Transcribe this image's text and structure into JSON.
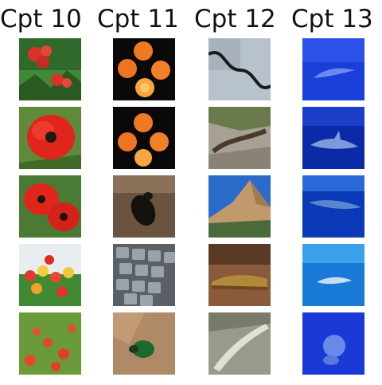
{
  "columns": [
    {
      "title": "Cpt 10",
      "images": [
        "poppies-field-icon",
        "red-poppy-closeup-icon",
        "red-poppies-icon",
        "tulips-garden-icon",
        "poppy-meadow-icon"
      ]
    },
    {
      "title": "Cpt 11",
      "images": [
        "oranges-four-icon",
        "oranges-three-icon",
        "beetle-on-soil-icon",
        "keyboard-keys-icon",
        "green-beetle-icon"
      ]
    },
    {
      "title": "Cpt 12",
      "images": [
        "snake-on-rock-icon",
        "lizard-on-rock-icon",
        "mountain-peak-icon",
        "crocodile-icon",
        "white-crocodile-icon"
      ]
    },
    {
      "title": "Cpt 13",
      "images": [
        "manta-ray-icon",
        "shark-blue-icon",
        "whale-shark-icon",
        "dolphin-blue-icon",
        "diver-blue-icon"
      ]
    }
  ],
  "colors": {
    "background": "#ffffff",
    "title_text": "#111111"
  }
}
